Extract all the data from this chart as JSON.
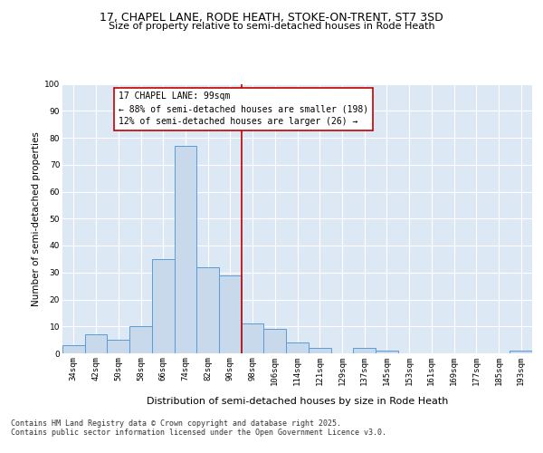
{
  "title": "17, CHAPEL LANE, RODE HEATH, STOKE-ON-TRENT, ST7 3SD",
  "subtitle": "Size of property relative to semi-detached houses in Rode Heath",
  "xlabel": "Distribution of semi-detached houses by size in Rode Heath",
  "ylabel": "Number of semi-detached properties",
  "categories": [
    "34sqm",
    "42sqm",
    "50sqm",
    "58sqm",
    "66sqm",
    "74sqm",
    "82sqm",
    "90sqm",
    "98sqm",
    "106sqm",
    "114sqm",
    "121sqm",
    "129sqm",
    "137sqm",
    "145sqm",
    "153sqm",
    "161sqm",
    "169sqm",
    "177sqm",
    "185sqm",
    "193sqm"
  ],
  "values": [
    3,
    7,
    5,
    10,
    35,
    77,
    32,
    29,
    11,
    9,
    4,
    2,
    0,
    2,
    1,
    0,
    0,
    0,
    0,
    0,
    1
  ],
  "bar_color": "#c9d9ec",
  "bar_edge_color": "#5b9bd5",
  "vline_color": "#c00000",
  "annotation_text": "17 CHAPEL LANE: 99sqm\n← 88% of semi-detached houses are smaller (198)\n12% of semi-detached houses are larger (26) →",
  "annotation_box_color": "#c00000",
  "background_color": "#dde8f5",
  "grid_color": "#ffffff",
  "ylim": [
    0,
    100
  ],
  "yticks": [
    0,
    10,
    20,
    30,
    40,
    50,
    60,
    70,
    80,
    90,
    100
  ],
  "footer": "Contains HM Land Registry data © Crown copyright and database right 2025.\nContains public sector information licensed under the Open Government Licence v3.0.",
  "title_fontsize": 9,
  "subtitle_fontsize": 8,
  "xlabel_fontsize": 8,
  "ylabel_fontsize": 7.5,
  "tick_fontsize": 6.5,
  "annotation_fontsize": 7,
  "footer_fontsize": 6
}
